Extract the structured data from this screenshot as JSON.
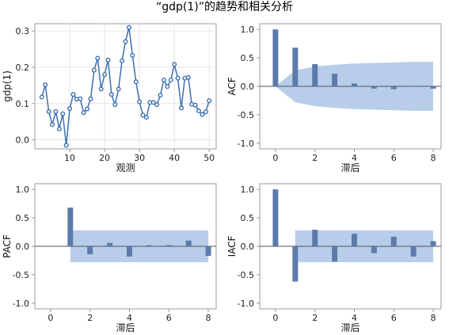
{
  "figure": {
    "title": "“gdp(1)”的趋势和相关分析"
  },
  "colors": {
    "line": "#3d6fb0",
    "marker_fill": "#ffffff",
    "bar": "#5b7bab",
    "band": "#b8cde9",
    "axis": "#999999",
    "grid": "#e6e6e6",
    "zero_line": "#555555"
  },
  "chart_data": [
    {
      "id": "trend",
      "type": "line",
      "title": "",
      "xlabel": "观测",
      "ylabel": "gdp(1)",
      "xlim": [
        0,
        52
      ],
      "ylim": [
        -0.025,
        0.32
      ],
      "xticks": [
        10,
        20,
        30,
        40,
        50
      ],
      "yticks": [
        0.0,
        0.1,
        0.2,
        0.3
      ],
      "grid": true,
      "x": [
        2,
        3,
        4,
        5,
        6,
        7,
        8,
        9,
        10,
        11,
        12,
        13,
        14,
        15,
        16,
        17,
        18,
        19,
        20,
        21,
        22,
        23,
        24,
        25,
        26,
        27,
        28,
        29,
        30,
        31,
        32,
        33,
        34,
        35,
        36,
        37,
        38,
        39,
        40,
        41,
        42,
        43,
        44,
        45,
        46,
        47,
        48,
        49,
        50
      ],
      "y": [
        0.118,
        0.152,
        0.078,
        0.042,
        0.078,
        0.03,
        0.072,
        -0.015,
        0.086,
        0.125,
        0.112,
        0.113,
        0.075,
        0.085,
        0.113,
        0.192,
        0.225,
        0.14,
        0.18,
        0.22,
        0.125,
        0.097,
        0.14,
        0.218,
        0.271,
        0.31,
        0.233,
        0.16,
        0.105,
        0.068,
        0.062,
        0.103,
        0.103,
        0.097,
        0.123,
        0.165,
        0.147,
        0.165,
        0.208,
        0.17,
        0.088,
        0.17,
        0.172,
        0.098,
        0.096,
        0.08,
        0.07,
        0.077,
        0.108
      ]
    },
    {
      "id": "acf",
      "type": "bar",
      "title": "",
      "xlabel": "滞后",
      "ylabel": "ACF",
      "xlim": [
        -0.8,
        8.4
      ],
      "ylim": [
        -1.1,
        1.1
      ],
      "xticks": [
        0,
        2,
        4,
        6,
        8
      ],
      "yticks": [
        -1.0,
        -0.5,
        0.0,
        0.5,
        1.0
      ],
      "grid": false,
      "x": [
        0,
        1,
        2,
        3,
        4,
        5,
        6,
        7,
        8
      ],
      "values": [
        1.0,
        0.68,
        0.39,
        0.22,
        0.05,
        -0.04,
        -0.05,
        0.0,
        -0.04
      ],
      "confidence_band": {
        "x": [
          0,
          1,
          2,
          3,
          4,
          5,
          6,
          7,
          8
        ],
        "upper": [
          0.0,
          0.28,
          0.35,
          0.38,
          0.4,
          0.41,
          0.42,
          0.43,
          0.43
        ]
      }
    },
    {
      "id": "pacf",
      "type": "bar",
      "title": "",
      "xlabel": "滞后",
      "ylabel": "PACF",
      "xlim": [
        -0.8,
        8.4
      ],
      "ylim": [
        -1.1,
        1.1
      ],
      "xticks": [
        0,
        2,
        4,
        6,
        8
      ],
      "yticks": [
        -1.0,
        -0.5,
        0.0,
        0.5,
        1.0
      ],
      "grid": false,
      "x": [
        1,
        2,
        3,
        4,
        5,
        6,
        7,
        8
      ],
      "values": [
        0.68,
        -0.14,
        0.06,
        -0.18,
        0.02,
        0.02,
        0.1,
        -0.17
      ],
      "confidence_band": {
        "x": [
          1,
          8
        ],
        "upper": [
          0.28,
          0.28
        ]
      }
    },
    {
      "id": "iacf",
      "type": "bar",
      "title": "",
      "xlabel": "滞后",
      "ylabel": "IACF",
      "xlim": [
        -0.8,
        8.4
      ],
      "ylim": [
        -1.1,
        1.1
      ],
      "xticks": [
        0,
        2,
        4,
        6,
        8
      ],
      "yticks": [
        -1.0,
        -0.5,
        0.0,
        0.5,
        1.0
      ],
      "grid": false,
      "x": [
        0,
        1,
        2,
        3,
        4,
        5,
        6,
        7,
        8
      ],
      "values": [
        1.0,
        -0.62,
        0.29,
        -0.27,
        0.22,
        -0.12,
        0.17,
        -0.18,
        0.09
      ],
      "confidence_band": {
        "x": [
          1,
          8
        ],
        "upper": [
          0.28,
          0.28
        ]
      }
    }
  ]
}
